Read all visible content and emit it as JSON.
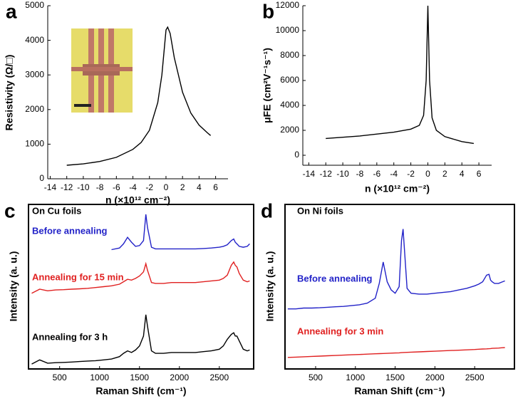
{
  "chart_data": [
    {
      "type": "line",
      "panel_label": "a",
      "x_label": "n (×10¹² cm⁻²)",
      "y_label": "Resistivity (Ω/□)",
      "x": [
        -12,
        -10,
        -8,
        -6,
        -4,
        -3,
        -2,
        -1,
        -0.5,
        0,
        0.2,
        0.5,
        1,
        2,
        3,
        4,
        5,
        5.4
      ],
      "series": [
        {
          "color": "#000000",
          "values": [
            390,
            430,
            500,
            620,
            850,
            1050,
            1400,
            2200,
            3000,
            4300,
            4380,
            4200,
            3500,
            2500,
            1900,
            1550,
            1330,
            1250
          ]
        }
      ],
      "xlim": [
        -14.3,
        7.5
      ],
      "xticks": [
        -14,
        -12,
        -10,
        -8,
        -6,
        -4,
        -2,
        0,
        2,
        4,
        6
      ],
      "ylim": [
        0,
        5000
      ],
      "yticks": [
        0,
        1000,
        2000,
        3000,
        4000,
        5000
      ]
    },
    {
      "type": "line",
      "panel_label": "b",
      "x_label": "n (×10¹² cm⁻²)",
      "y_label": "μFE (cm²V⁻¹s⁻¹)",
      "x": [
        -12,
        -8,
        -4,
        -2,
        -1,
        -0.5,
        -0.2,
        0,
        0.2,
        0.5,
        1,
        2,
        4,
        5.4
      ],
      "series": [
        {
          "color": "#000000",
          "values": [
            1350,
            1550,
            1850,
            2100,
            2400,
            3200,
            6000,
            12000,
            6000,
            3000,
            2000,
            1500,
            1100,
            950
          ]
        }
      ],
      "xlim": [
        -14.7,
        7.5
      ],
      "xticks": [
        -14,
        -12,
        -10,
        -8,
        -6,
        -4,
        -2,
        0,
        2,
        4,
        6
      ],
      "ylim": [
        -800,
        12000
      ],
      "yticks": [
        0,
        2000,
        4000,
        6000,
        8000,
        10000,
        12000
      ]
    },
    {
      "type": "line",
      "panel_label": "c",
      "x_label": "Raman Shift (cm⁻¹)",
      "y_label": "Intensity (a. u.)",
      "annotation": "On Cu foils",
      "x": [
        150,
        250,
        350,
        450,
        550,
        650,
        750,
        850,
        950,
        1050,
        1150,
        1250,
        1300,
        1350,
        1400,
        1450,
        1500,
        1550,
        1580,
        1600,
        1650,
        1700,
        1800,
        1900,
        2000,
        2100,
        2200,
        2300,
        2400,
        2500,
        2550,
        2600,
        2650,
        2680,
        2700,
        2720,
        2750,
        2800,
        2850,
        2880
      ],
      "series": [
        {
          "name": "Before annealing",
          "color": "#2222c8",
          "values": [
            null,
            null,
            null,
            null,
            null,
            null,
            null,
            null,
            null,
            null,
            7.25,
            7.35,
            7.6,
            8.0,
            7.7,
            7.45,
            7.5,
            7.8,
            9.4,
            8.6,
            7.4,
            7.3,
            7.3,
            7.3,
            7.3,
            7.3,
            7.3,
            7.32,
            7.35,
            7.4,
            7.45,
            7.55,
            7.8,
            7.9,
            7.7,
            7.6,
            7.45,
            7.4,
            7.45,
            7.6
          ]
        },
        {
          "name": "Annealing for 15 min",
          "color": "#e02020",
          "values": [
            4.6,
            4.85,
            4.75,
            4.8,
            4.82,
            4.85,
            4.87,
            4.9,
            4.95,
            5.0,
            5.05,
            5.15,
            5.3,
            5.45,
            5.4,
            5.5,
            5.65,
            5.9,
            6.4,
            6.0,
            5.25,
            5.2,
            5.2,
            5.25,
            5.25,
            5.25,
            5.25,
            5.3,
            5.35,
            5.4,
            5.5,
            5.7,
            6.3,
            6.5,
            6.3,
            6.2,
            5.8,
            5.4,
            5.3,
            5.35
          ]
        },
        {
          "name": "Annealing for 3 h",
          "color": "#000000",
          "values": [
            0.3,
            0.55,
            0.35,
            0.38,
            0.4,
            0.42,
            0.45,
            0.48,
            0.5,
            0.55,
            0.6,
            0.75,
            0.95,
            1.1,
            1.0,
            1.15,
            1.4,
            2.0,
            3.3,
            2.6,
            1.1,
            0.95,
            0.95,
            1.0,
            1.0,
            1.0,
            1.0,
            1.05,
            1.1,
            1.2,
            1.4,
            1.8,
            2.1,
            2.2,
            2.0,
            2.0,
            1.7,
            1.2,
            1.1,
            1.15
          ]
        }
      ],
      "xlim": [
        110,
        2930
      ],
      "xticks": [
        500,
        1000,
        1500,
        2000,
        2500
      ],
      "ylim": [
        0,
        10
      ]
    },
    {
      "type": "line",
      "panel_label": "d",
      "x_label": "Raman Shift (cm⁻¹)",
      "y_label": "Intensity (a. u.)",
      "annotation": "On Ni foils",
      "x": [
        150,
        250,
        350,
        450,
        550,
        650,
        750,
        850,
        950,
        1050,
        1150,
        1250,
        1300,
        1350,
        1400,
        1450,
        1500,
        1550,
        1580,
        1600,
        1650,
        1700,
        1800,
        1900,
        2000,
        2100,
        2200,
        2300,
        2400,
        2500,
        2550,
        2600,
        2650,
        2680,
        2700,
        2720,
        2750,
        2800,
        2850,
        2880
      ],
      "series": [
        {
          "name": "Before annealing",
          "color": "#2222c8",
          "values": [
            3.65,
            3.65,
            3.7,
            3.7,
            3.72,
            3.75,
            3.78,
            3.8,
            3.85,
            3.9,
            4.0,
            4.3,
            5.2,
            6.5,
            5.3,
            4.8,
            4.6,
            5.0,
            7.8,
            8.5,
            4.9,
            4.6,
            4.55,
            4.55,
            4.6,
            4.65,
            4.7,
            4.8,
            4.9,
            5.05,
            5.15,
            5.3,
            5.7,
            5.75,
            5.4,
            5.3,
            5.2,
            5.2,
            5.3,
            5.35
          ]
        },
        {
          "name": "Annealing for 3 min",
          "color": "#e02020",
          "values": [
            0.7,
            0.72,
            0.74,
            0.76,
            0.78,
            0.8,
            0.82,
            0.84,
            0.86,
            0.88,
            0.9,
            0.92,
            0.93,
            0.94,
            0.95,
            0.96,
            0.97,
            0.98,
            0.99,
            1.0,
            1.01,
            1.02,
            1.04,
            1.06,
            1.08,
            1.1,
            1.12,
            1.14,
            1.16,
            1.18,
            1.2,
            1.21,
            1.22,
            1.23,
            1.24,
            1.25,
            1.26,
            1.27,
            1.29,
            1.3
          ]
        }
      ],
      "xlim": [
        115,
        3000
      ],
      "xticks": [
        500,
        1000,
        1500,
        2000,
        2500
      ],
      "ylim": [
        0,
        10
      ]
    }
  ]
}
